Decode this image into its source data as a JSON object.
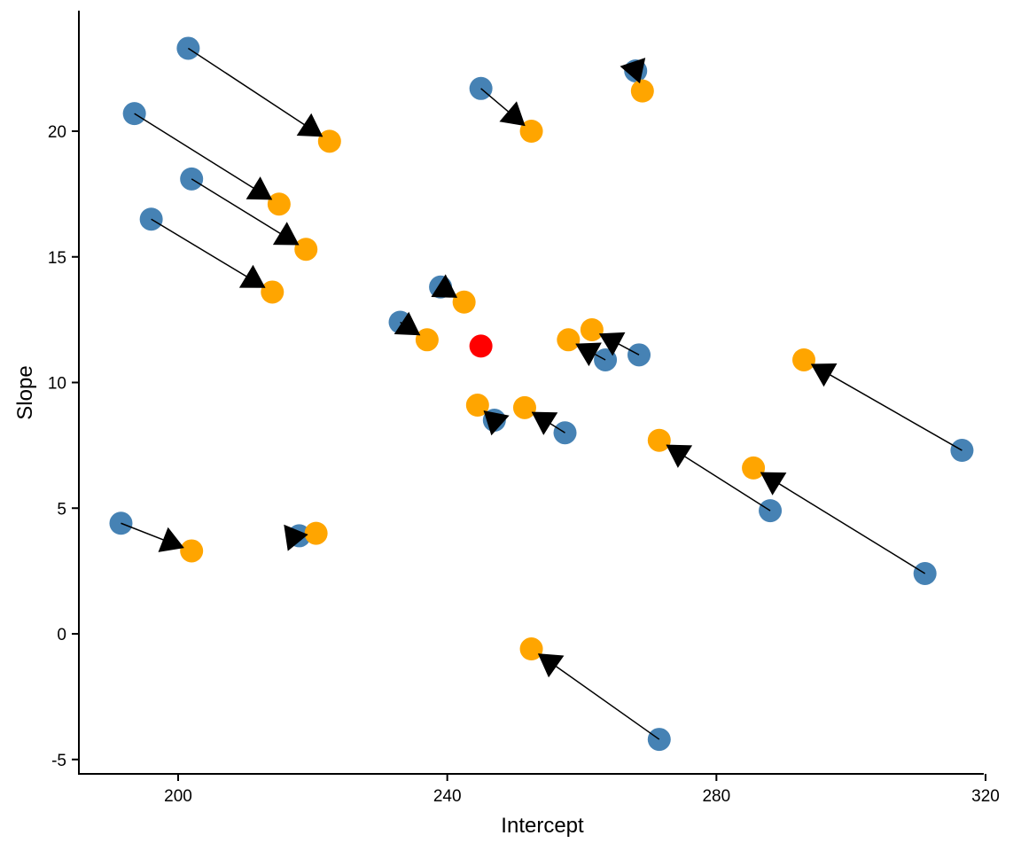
{
  "chart_data": {
    "type": "scatter",
    "title": "",
    "xlabel": "Intercept",
    "ylabel": "Slope",
    "xlim": [
      185,
      323
    ],
    "ylim": [
      -5.5,
      24.5
    ],
    "xticks": [
      200,
      240,
      280,
      320
    ],
    "yticks": [
      -5,
      0,
      5,
      10,
      15,
      20
    ],
    "grid": false,
    "legend": "none",
    "colors": {
      "start": "#4682B4",
      "end": "#FFA500",
      "center": "#FF0000",
      "arrow": "#000000"
    },
    "pairs": [
      {
        "x1": 201.5,
        "y1": 23.3,
        "x2": 222.5,
        "y2": 19.6
      },
      {
        "x1": 193.5,
        "y1": 20.7,
        "x2": 215.0,
        "y2": 17.1
      },
      {
        "x1": 202.0,
        "y1": 18.1,
        "x2": 219.0,
        "y2": 15.3
      },
      {
        "x1": 196.0,
        "y1": 16.5,
        "x2": 214.0,
        "y2": 13.6
      },
      {
        "x1": 245.0,
        "y1": 21.7,
        "x2": 252.5,
        "y2": 20.0
      },
      {
        "x1": 268.0,
        "y1": 22.4,
        "x2": 269.0,
        "y2": 21.6
      },
      {
        "x1": 239.0,
        "y1": 13.8,
        "x2": 242.5,
        "y2": 13.2
      },
      {
        "x1": 233.0,
        "y1": 12.4,
        "x2": 237.0,
        "y2": 11.7
      },
      {
        "x1": 263.5,
        "y1": 10.9,
        "x2": 258.0,
        "y2": 11.7
      },
      {
        "x1": 268.5,
        "y1": 11.1,
        "x2": 261.5,
        "y2": 12.1
      },
      {
        "x1": 316.5,
        "y1": 7.3,
        "x2": 293.0,
        "y2": 10.9
      },
      {
        "x1": 247.0,
        "y1": 8.5,
        "x2": 244.5,
        "y2": 9.1
      },
      {
        "x1": 257.5,
        "y1": 8.0,
        "x2": 251.5,
        "y2": 9.0
      },
      {
        "x1": 288.0,
        "y1": 4.9,
        "x2": 271.5,
        "y2": 7.7
      },
      {
        "x1": 311.0,
        "y1": 2.4,
        "x2": 285.5,
        "y2": 6.6
      },
      {
        "x1": 191.5,
        "y1": 4.4,
        "x2": 202.0,
        "y2": 3.3
      },
      {
        "x1": 218.0,
        "y1": 3.9,
        "x2": 220.5,
        "y2": 4.0
      },
      {
        "x1": 271.5,
        "y1": -4.2,
        "x2": 252.5,
        "y2": -0.6
      }
    ],
    "center_point": {
      "x": 245.0,
      "y": 11.45
    }
  }
}
